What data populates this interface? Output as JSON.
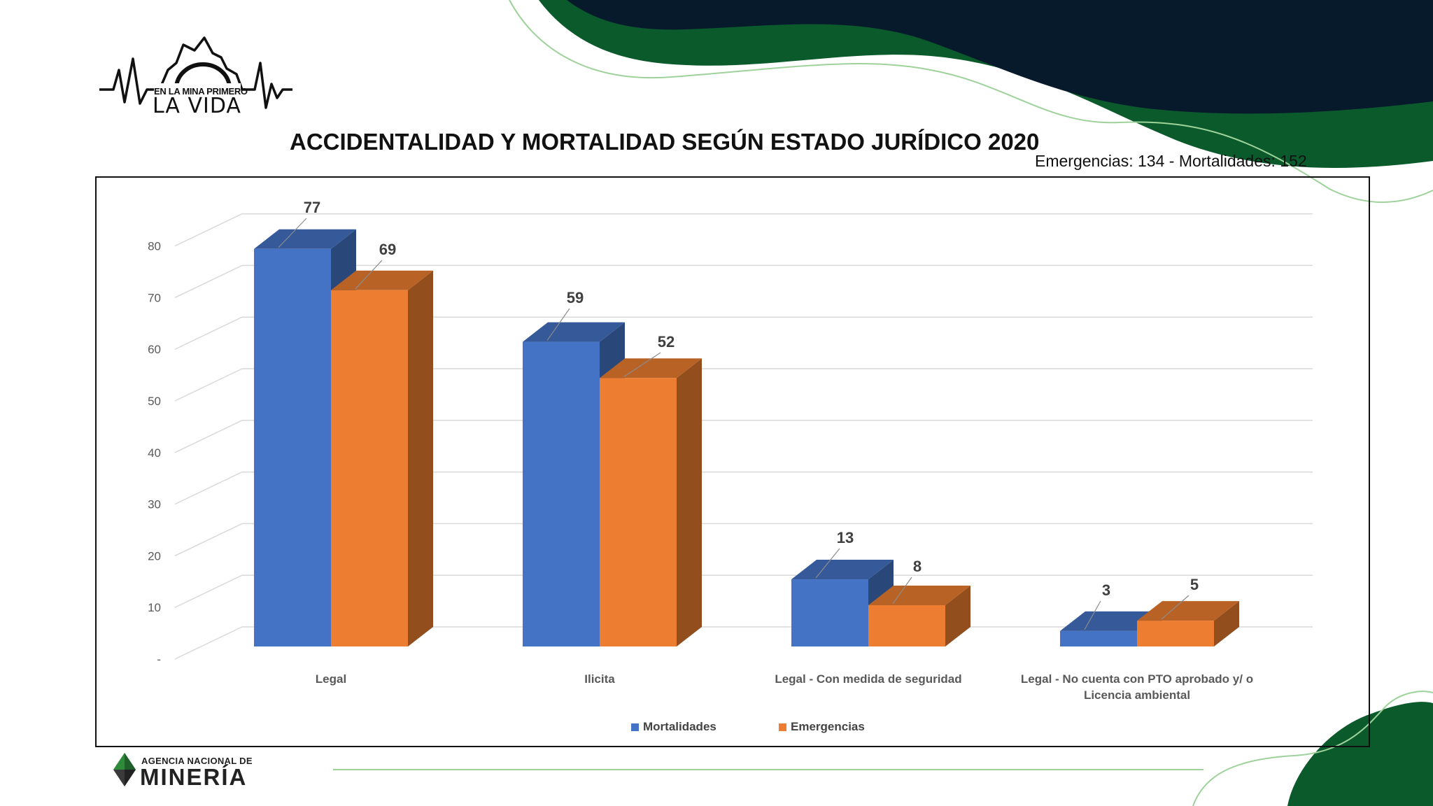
{
  "branding": {
    "top_logo_line1": "EN LA MINA PRIMERO",
    "top_logo_line2": "LA VIDA",
    "bottom_logo_line1": "AGENCIA NACIONAL DE",
    "bottom_logo_line2": "MINERÍA"
  },
  "colors": {
    "dark_navy": "#071a2c",
    "dark_green": "#0b5a2c",
    "light_green": "#9ed29a",
    "series_blue": "#4472c4",
    "series_orange": "#ed7d31"
  },
  "chart_data": {
    "type": "bar",
    "title": "ACCIDENTALIDAD Y MORTALIDAD SEGÚN ESTADO JURÍDICO 2020",
    "subtitle": "Emergencias: 134 - Mortalidades: 152",
    "categories": [
      "Legal",
      "Ilicita",
      "Legal - Con medida de seguridad",
      [
        "Legal - No cuenta con PTO aprobado y/ o",
        "Licencia ambiental"
      ]
    ],
    "series": [
      {
        "name": "Mortalidades",
        "values": [
          77,
          59,
          13,
          3
        ],
        "color": "#4472c4"
      },
      {
        "name": "Emergencias",
        "values": [
          69,
          52,
          8,
          5
        ],
        "color": "#ed7d31"
      }
    ],
    "y_ticks": [
      "-",
      "10",
      "20",
      "30",
      "40",
      "50",
      "60",
      "70",
      "80"
    ],
    "ylim": [
      0,
      85
    ],
    "grid": true,
    "legend_position": "bottom",
    "style": "3d-clustered-column"
  }
}
